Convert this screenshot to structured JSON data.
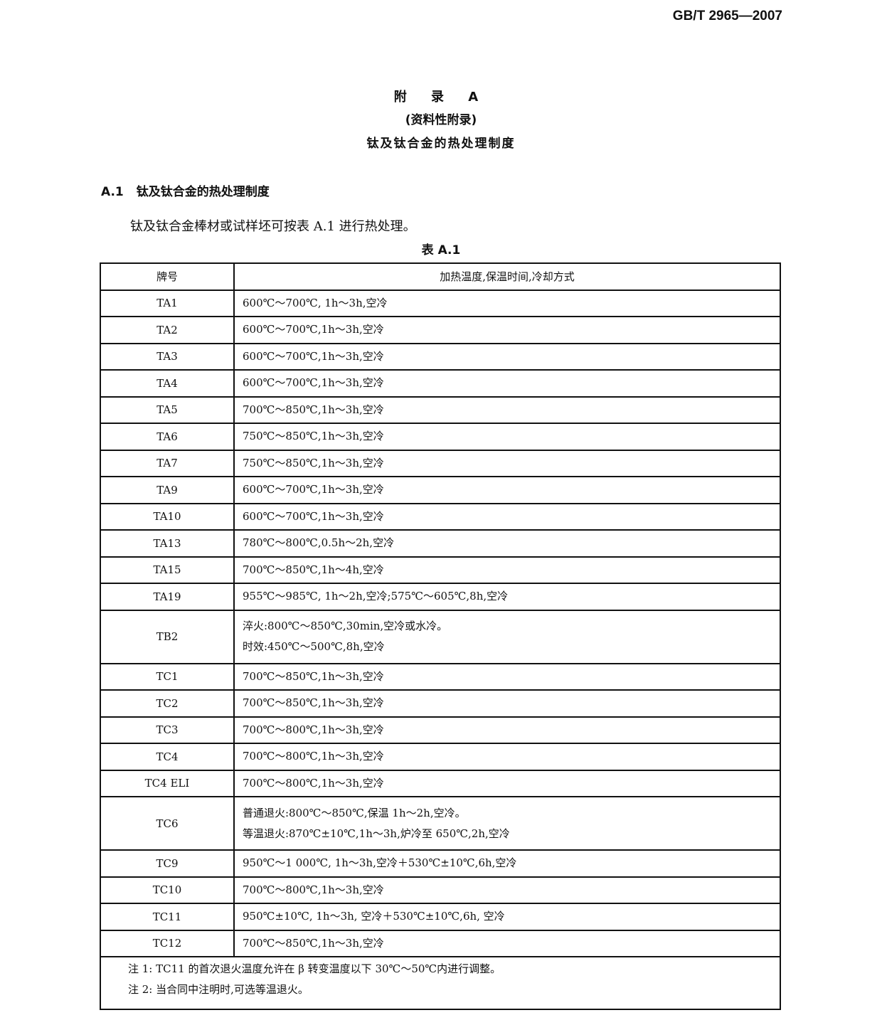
{
  "header": {
    "standard_no": "GB/T 2965—2007"
  },
  "appendix": {
    "title": "附 录 A",
    "subtitle": "(资料性附录)",
    "heading": "钛及钛合金的热处理制度"
  },
  "section": {
    "number": "A.1",
    "title": "钛及钛合金的热处理制度"
  },
  "paragraph": "钛及钛合金棒材或试样坯可按表 A.1 进行热处理。",
  "table": {
    "caption": "表 A.1",
    "headers": [
      "牌号",
      "加热温度,保温时间,冷却方式"
    ],
    "rows": [
      {
        "grade": "TA1",
        "lines": [
          "600℃～700℃, 1h～3h,空冷"
        ]
      },
      {
        "grade": "TA2",
        "lines": [
          "600℃～700℃,1h～3h,空冷"
        ]
      },
      {
        "grade": "TA3",
        "lines": [
          "600℃～700℃,1h～3h,空冷"
        ]
      },
      {
        "grade": "TA4",
        "lines": [
          "600℃～700℃,1h～3h,空冷"
        ]
      },
      {
        "grade": "TA5",
        "lines": [
          "700℃～850℃,1h～3h,空冷"
        ]
      },
      {
        "grade": "TA6",
        "lines": [
          "750℃～850℃,1h～3h,空冷"
        ]
      },
      {
        "grade": "TA7",
        "lines": [
          "750℃～850℃,1h～3h,空冷"
        ]
      },
      {
        "grade": "TA9",
        "lines": [
          "600℃～700℃,1h～3h,空冷"
        ]
      },
      {
        "grade": "TA10",
        "lines": [
          "600℃～700℃,1h～3h,空冷"
        ]
      },
      {
        "grade": "TA13",
        "lines": [
          "780℃～800℃,0.5h～2h,空冷"
        ]
      },
      {
        "grade": "TA15",
        "lines": [
          "700℃～850℃,1h～4h,空冷"
        ]
      },
      {
        "grade": "TA19",
        "lines": [
          "955℃～985℃, 1h～2h,空冷;575℃～605℃,8h,空冷"
        ]
      },
      {
        "grade": "TB2",
        "lines": [
          "淬火:800℃～850℃,30min,空冷或水冷。",
          "时效:450℃～500℃,8h,空冷"
        ]
      },
      {
        "grade": "TC1",
        "lines": [
          "700℃～850℃,1h～3h,空冷"
        ]
      },
      {
        "grade": "TC2",
        "lines": [
          "700℃～850℃,1h～3h,空冷"
        ]
      },
      {
        "grade": "TC3",
        "lines": [
          "700℃～800℃,1h～3h,空冷"
        ]
      },
      {
        "grade": "TC4",
        "lines": [
          "700℃～800℃,1h～3h,空冷"
        ]
      },
      {
        "grade": "TC4 ELI",
        "lines": [
          "700℃～800℃,1h～3h,空冷"
        ]
      },
      {
        "grade": "TC6",
        "lines": [
          "普通退火:800℃～850℃,保温 1h～2h,空冷。",
          "等温退火:870℃±10℃,1h～3h,炉冷至 650℃,2h,空冷"
        ]
      },
      {
        "grade": "TC9",
        "lines": [
          "950℃～1 000℃, 1h～3h,空冷＋530℃±10℃,6h,空冷"
        ]
      },
      {
        "grade": "TC10",
        "lines": [
          "700℃～800℃,1h～3h,空冷"
        ]
      },
      {
        "grade": "TC11",
        "lines": [
          "950℃±10℃, 1h～3h, 空冷＋530℃±10℃,6h, 空冷"
        ]
      },
      {
        "grade": "TC12",
        "lines": [
          "700℃～850℃,1h～3h,空冷"
        ]
      }
    ],
    "notes": [
      "注 1: TC11 的首次退火温度允许在 β 转变温度以下 30℃～50℃内进行调整。",
      "注 2: 当合同中注明时,可选等温退火。"
    ]
  }
}
